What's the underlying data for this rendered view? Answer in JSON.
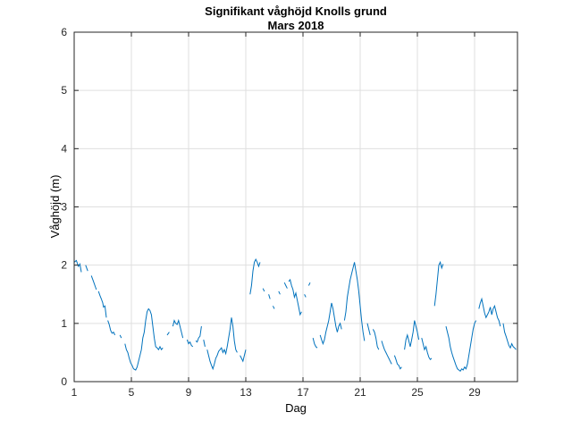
{
  "chart_data": {
    "type": "line",
    "title": "Signifikant våghöjd Knolls grund",
    "subtitle": "Mars 2018",
    "xlabel": "Dag",
    "ylabel": "Våghöjd (m)",
    "xlim": [
      1,
      32
    ],
    "ylim": [
      0,
      6
    ],
    "xticks": [
      1,
      5,
      9,
      13,
      17,
      21,
      25,
      29
    ],
    "yticks": [
      0,
      1,
      2,
      3,
      4,
      5,
      6
    ],
    "grid": true,
    "line_color": "#0072BD",
    "segments": [
      [
        [
          1.0,
          2.05
        ],
        [
          1.15,
          2.08
        ],
        [
          1.3,
          1.98
        ],
        [
          1.4,
          2.02
        ],
        [
          1.5,
          1.88
        ]
      ],
      [
        [
          1.8,
          2.0
        ],
        [
          1.95,
          1.9
        ]
      ],
      [
        [
          2.2,
          1.82
        ],
        [
          2.35,
          1.72
        ],
        [
          2.45,
          1.65
        ],
        [
          2.55,
          1.58
        ]
      ],
      [
        [
          2.7,
          1.55
        ],
        [
          2.8,
          1.48
        ],
        [
          2.9,
          1.42
        ],
        [
          3.0,
          1.35
        ],
        [
          3.05,
          1.28
        ],
        [
          3.15,
          1.3
        ],
        [
          3.25,
          1.1
        ]
      ],
      [
        [
          3.35,
          1.05
        ],
        [
          3.45,
          0.98
        ],
        [
          3.55,
          0.88
        ],
        [
          3.65,
          0.83
        ],
        [
          3.75,
          0.85
        ],
        [
          3.85,
          0.8
        ]
      ],
      [
        [
          4.2,
          0.8
        ],
        [
          4.3,
          0.75
        ]
      ],
      [
        [
          4.55,
          0.65
        ],
        [
          4.65,
          0.55
        ],
        [
          4.75,
          0.5
        ],
        [
          4.85,
          0.4
        ],
        [
          4.95,
          0.32
        ],
        [
          5.05,
          0.28
        ],
        [
          5.15,
          0.22
        ],
        [
          5.3,
          0.2
        ],
        [
          5.4,
          0.25
        ],
        [
          5.5,
          0.35
        ],
        [
          5.6,
          0.45
        ],
        [
          5.7,
          0.55
        ],
        [
          5.8,
          0.75
        ],
        [
          5.9,
          0.85
        ],
        [
          6.0,
          1.05
        ],
        [
          6.1,
          1.2
        ],
        [
          6.2,
          1.25
        ],
        [
          6.3,
          1.22
        ],
        [
          6.4,
          1.15
        ],
        [
          6.5,
          0.95
        ],
        [
          6.6,
          0.75
        ],
        [
          6.7,
          0.6
        ],
        [
          6.8,
          0.58
        ],
        [
          6.9,
          0.55
        ],
        [
          7.0,
          0.6
        ],
        [
          7.1,
          0.55
        ],
        [
          7.2,
          0.58
        ]
      ],
      [
        [
          7.5,
          0.8
        ],
        [
          7.65,
          0.85
        ]
      ],
      [
        [
          7.9,
          0.95
        ],
        [
          8.0,
          1.05
        ],
        [
          8.1,
          1.0
        ],
        [
          8.2,
          0.98
        ],
        [
          8.3,
          1.05
        ],
        [
          8.4,
          0.95
        ],
        [
          8.5,
          0.85
        ],
        [
          8.6,
          0.75
        ]
      ],
      [
        [
          8.9,
          0.72
        ],
        [
          9.0,
          0.65
        ],
        [
          9.1,
          0.68
        ],
        [
          9.2,
          0.62
        ],
        [
          9.3,
          0.6
        ]
      ],
      [
        [
          9.5,
          0.7
        ],
        [
          9.6,
          0.68
        ],
        [
          9.7,
          0.75
        ],
        [
          9.8,
          0.78
        ],
        [
          9.9,
          0.95
        ]
      ],
      [
        [
          10.05,
          0.72
        ],
        [
          10.15,
          0.6
        ]
      ],
      [
        [
          10.3,
          0.55
        ],
        [
          10.4,
          0.45
        ],
        [
          10.5,
          0.35
        ],
        [
          10.6,
          0.28
        ],
        [
          10.7,
          0.22
        ],
        [
          10.8,
          0.3
        ],
        [
          10.9,
          0.4
        ],
        [
          11.0,
          0.45
        ],
        [
          11.1,
          0.52
        ],
        [
          11.2,
          0.55
        ],
        [
          11.3,
          0.58
        ],
        [
          11.4,
          0.5
        ],
        [
          11.5,
          0.55
        ],
        [
          11.6,
          0.48
        ],
        [
          11.7,
          0.6
        ],
        [
          11.8,
          0.75
        ],
        [
          11.9,
          0.9
        ],
        [
          12.0,
          1.1
        ],
        [
          12.1,
          0.95
        ],
        [
          12.2,
          0.7
        ],
        [
          12.3,
          0.55
        ],
        [
          12.4,
          0.5
        ]
      ],
      [
        [
          12.6,
          0.45
        ],
        [
          12.7,
          0.4
        ],
        [
          12.8,
          0.35
        ],
        [
          12.9,
          0.45
        ],
        [
          13.0,
          0.55
        ]
      ],
      [
        [
          13.3,
          1.5
        ],
        [
          13.4,
          1.65
        ],
        [
          13.5,
          1.9
        ],
        [
          13.6,
          2.05
        ],
        [
          13.7,
          2.1
        ],
        [
          13.8,
          2.05
        ],
        [
          13.9,
          1.98
        ],
        [
          14.0,
          2.05
        ]
      ],
      [
        [
          14.2,
          1.6
        ],
        [
          14.3,
          1.55
        ]
      ],
      [
        [
          14.6,
          1.5
        ],
        [
          14.7,
          1.42
        ]
      ],
      [
        [
          14.9,
          1.3
        ],
        [
          15.0,
          1.25
        ]
      ],
      [
        [
          15.3,
          1.55
        ],
        [
          15.4,
          1.5
        ]
      ],
      [
        [
          15.7,
          1.7
        ],
        [
          15.8,
          1.65
        ],
        [
          15.9,
          1.6
        ]
      ],
      [
        [
          16.0,
          1.72
        ],
        [
          16.1,
          1.75
        ],
        [
          16.2,
          1.65
        ],
        [
          16.3,
          1.58
        ],
        [
          16.4,
          1.45
        ],
        [
          16.5,
          1.52
        ],
        [
          16.6,
          1.4
        ],
        [
          16.7,
          1.28
        ],
        [
          16.8,
          1.15
        ],
        [
          16.9,
          1.2
        ]
      ],
      [
        [
          17.1,
          1.5
        ],
        [
          17.2,
          1.45
        ]
      ],
      [
        [
          17.4,
          1.65
        ],
        [
          17.5,
          1.7
        ]
      ],
      [
        [
          17.7,
          0.75
        ],
        [
          17.8,
          0.65
        ],
        [
          17.9,
          0.6
        ],
        [
          18.0,
          0.58
        ]
      ],
      [
        [
          18.2,
          0.8
        ],
        [
          18.3,
          0.72
        ],
        [
          18.4,
          0.65
        ],
        [
          18.5,
          0.72
        ],
        [
          18.6,
          0.85
        ],
        [
          18.7,
          0.95
        ],
        [
          18.8,
          1.05
        ],
        [
          18.9,
          1.2
        ],
        [
          19.0,
          1.35
        ],
        [
          19.1,
          1.25
        ],
        [
          19.2,
          1.1
        ],
        [
          19.3,
          0.95
        ],
        [
          19.4,
          0.85
        ],
        [
          19.5,
          0.95
        ],
        [
          19.6,
          1.0
        ],
        [
          19.7,
          0.9
        ]
      ],
      [
        [
          19.9,
          1.05
        ],
        [
          20.0,
          1.2
        ],
        [
          20.1,
          1.45
        ],
        [
          20.2,
          1.6
        ],
        [
          20.3,
          1.75
        ],
        [
          20.4,
          1.85
        ],
        [
          20.5,
          1.95
        ],
        [
          20.6,
          2.05
        ],
        [
          20.7,
          1.9
        ],
        [
          20.8,
          1.75
        ],
        [
          20.9,
          1.55
        ],
        [
          21.0,
          1.3
        ],
        [
          21.1,
          1.05
        ],
        [
          21.2,
          0.85
        ],
        [
          21.3,
          0.7
        ]
      ],
      [
        [
          21.5,
          1.0
        ],
        [
          21.6,
          0.9
        ],
        [
          21.7,
          0.8
        ]
      ],
      [
        [
          21.9,
          0.9
        ],
        [
          22.0,
          0.85
        ],
        [
          22.1,
          0.75
        ],
        [
          22.2,
          0.6
        ],
        [
          22.3,
          0.55
        ]
      ],
      [
        [
          22.5,
          0.7
        ],
        [
          22.6,
          0.62
        ],
        [
          22.7,
          0.55
        ],
        [
          22.8,
          0.5
        ],
        [
          22.9,
          0.45
        ],
        [
          23.0,
          0.4
        ],
        [
          23.1,
          0.35
        ],
        [
          23.2,
          0.3
        ]
      ],
      [
        [
          23.4,
          0.45
        ],
        [
          23.5,
          0.38
        ],
        [
          23.6,
          0.3
        ],
        [
          23.7,
          0.28
        ],
        [
          23.8,
          0.22
        ],
        [
          23.9,
          0.25
        ]
      ],
      [
        [
          24.1,
          0.55
        ],
        [
          24.2,
          0.72
        ],
        [
          24.3,
          0.8
        ],
        [
          24.4,
          0.7
        ],
        [
          24.5,
          0.6
        ],
        [
          24.6,
          0.72
        ],
        [
          24.7,
          0.85
        ],
        [
          24.8,
          1.05
        ],
        [
          24.9,
          0.95
        ],
        [
          25.0,
          0.85
        ],
        [
          25.1,
          0.72
        ]
      ],
      [
        [
          25.3,
          0.75
        ],
        [
          25.4,
          0.65
        ],
        [
          25.5,
          0.55
        ],
        [
          25.6,
          0.6
        ],
        [
          25.7,
          0.5
        ],
        [
          25.8,
          0.42
        ],
        [
          25.9,
          0.38
        ],
        [
          26.0,
          0.4
        ]
      ],
      [
        [
          26.2,
          1.3
        ],
        [
          26.3,
          1.5
        ],
        [
          26.4,
          1.75
        ],
        [
          26.5,
          2.0
        ],
        [
          26.6,
          2.05
        ],
        [
          26.7,
          1.95
        ],
        [
          26.8,
          2.02
        ]
      ],
      [
        [
          27.0,
          0.95
        ],
        [
          27.1,
          0.85
        ],
        [
          27.2,
          0.75
        ],
        [
          27.3,
          0.6
        ],
        [
          27.4,
          0.5
        ],
        [
          27.5,
          0.42
        ],
        [
          27.6,
          0.35
        ],
        [
          27.7,
          0.28
        ],
        [
          27.8,
          0.22
        ],
        [
          27.9,
          0.2
        ],
        [
          28.0,
          0.18
        ],
        [
          28.1,
          0.22
        ],
        [
          28.2,
          0.2
        ],
        [
          28.3,
          0.25
        ],
        [
          28.4,
          0.22
        ],
        [
          28.5,
          0.3
        ],
        [
          28.6,
          0.45
        ],
        [
          28.7,
          0.6
        ],
        [
          28.8,
          0.75
        ],
        [
          28.9,
          0.9
        ],
        [
          29.0,
          1.0
        ],
        [
          29.1,
          1.05
        ]
      ],
      [
        [
          29.3,
          1.25
        ],
        [
          29.4,
          1.35
        ],
        [
          29.5,
          1.42
        ],
        [
          29.6,
          1.3
        ],
        [
          29.7,
          1.18
        ],
        [
          29.8,
          1.1
        ],
        [
          29.9,
          1.15
        ],
        [
          30.0,
          1.2
        ],
        [
          30.1,
          1.28
        ],
        [
          30.2,
          1.15
        ],
        [
          30.3,
          1.25
        ],
        [
          30.4,
          1.3
        ],
        [
          30.5,
          1.2
        ],
        [
          30.6,
          1.1
        ],
        [
          30.7,
          1.05
        ],
        [
          30.8,
          0.95
        ]
      ],
      [
        [
          31.0,
          1.0
        ],
        [
          31.1,
          0.85
        ],
        [
          31.2,
          0.78
        ],
        [
          31.3,
          0.7
        ],
        [
          31.4,
          0.62
        ],
        [
          31.5,
          0.58
        ],
        [
          31.6,
          0.65
        ],
        [
          31.7,
          0.6
        ],
        [
          31.8,
          0.58
        ],
        [
          31.9,
          0.55
        ]
      ]
    ]
  }
}
